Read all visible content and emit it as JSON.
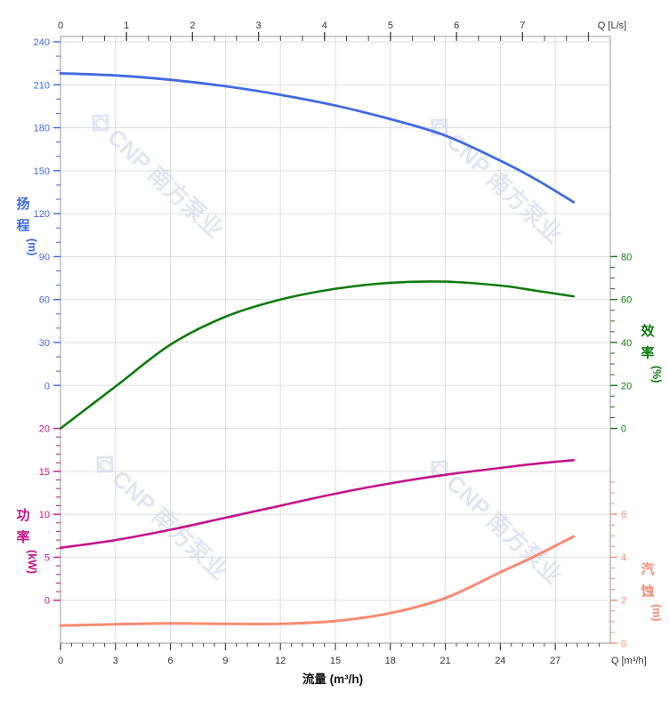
{
  "watermark": {
    "text": "CNP 南方泵业",
    "color": "#c7d1e6",
    "logo_icon": "cnp-diamond-logo"
  },
  "chart_data": {
    "type": "line",
    "title": "",
    "grid": true,
    "x": [
      0,
      3,
      6,
      9,
      12,
      15,
      18,
      21,
      24,
      26,
      28
    ],
    "x_bottom_axis": {
      "title": "流量 (m³/h)",
      "unit_label": "Q [m³/h]",
      "ticks": [
        0,
        3,
        6,
        9,
        12,
        15,
        18,
        21,
        24,
        27
      ],
      "range": [
        0,
        30
      ],
      "minor_step": 0.6,
      "color": "#333333"
    },
    "x_top_axis": {
      "unit_label": "Q [L/s]",
      "ticks": [
        0,
        1,
        2,
        3,
        4,
        5,
        6,
        7
      ],
      "range": [
        0,
        8.33
      ],
      "minor_step": 0.3333,
      "color": "#333333"
    },
    "y_axes": {
      "head": {
        "title_chars": "扬程",
        "unit": "(m)",
        "side": "left",
        "color": "#4169E1",
        "ticks": [
          240,
          210,
          180,
          150,
          120,
          90,
          60,
          30,
          0
        ],
        "minor_step": 10,
        "range": [
          0,
          240
        ]
      },
      "power": {
        "title_chars": "功率",
        "unit": "(kW)",
        "side": "left",
        "color": "#C4138A",
        "ticks": [
          20,
          15,
          10,
          5,
          0
        ],
        "minor_step": 1,
        "range": [
          0,
          20
        ]
      },
      "efficiency": {
        "title_chars": "效率",
        "unit": "(%)",
        "side": "right",
        "color": "#0F7B0F",
        "ticks": [
          80,
          60,
          40,
          20,
          0
        ],
        "minor_step": 5,
        "range": [
          0,
          80
        ]
      },
      "npsh": {
        "title_chars": "汽蚀",
        "unit": "(m)",
        "side": "right",
        "color": "#F88A72",
        "ticks": [
          6,
          4,
          2,
          0
        ],
        "minor_step": 0.5,
        "range": [
          0,
          6
        ]
      }
    },
    "series": [
      {
        "name": "head",
        "axis": "head",
        "color": "#4169E1",
        "width": 2.8,
        "values": [
          218,
          216.5,
          213.5,
          209,
          203,
          195.5,
          186,
          174.5,
          157,
          143.5,
          128
        ]
      },
      {
        "name": "efficiency",
        "axis": "efficiency",
        "color": "#0F7B0F",
        "width": 2.6,
        "values": [
          0,
          19.5,
          39,
          52,
          60,
          65,
          67.8,
          68.3,
          66.5,
          64,
          61.5
        ]
      },
      {
        "name": "power",
        "axis": "power",
        "color": "#C4138A",
        "width": 2.6,
        "values": [
          6.1,
          7.0,
          8.2,
          9.6,
          11.0,
          12.4,
          13.6,
          14.6,
          15.4,
          15.9,
          16.3
        ]
      },
      {
        "name": "npsh",
        "axis": "npsh",
        "color": "#F88A72",
        "width": 3,
        "values": [
          0.82,
          0.88,
          0.92,
          0.9,
          0.9,
          1.03,
          1.4,
          2.1,
          3.3,
          4.1,
          4.97
        ]
      }
    ]
  }
}
